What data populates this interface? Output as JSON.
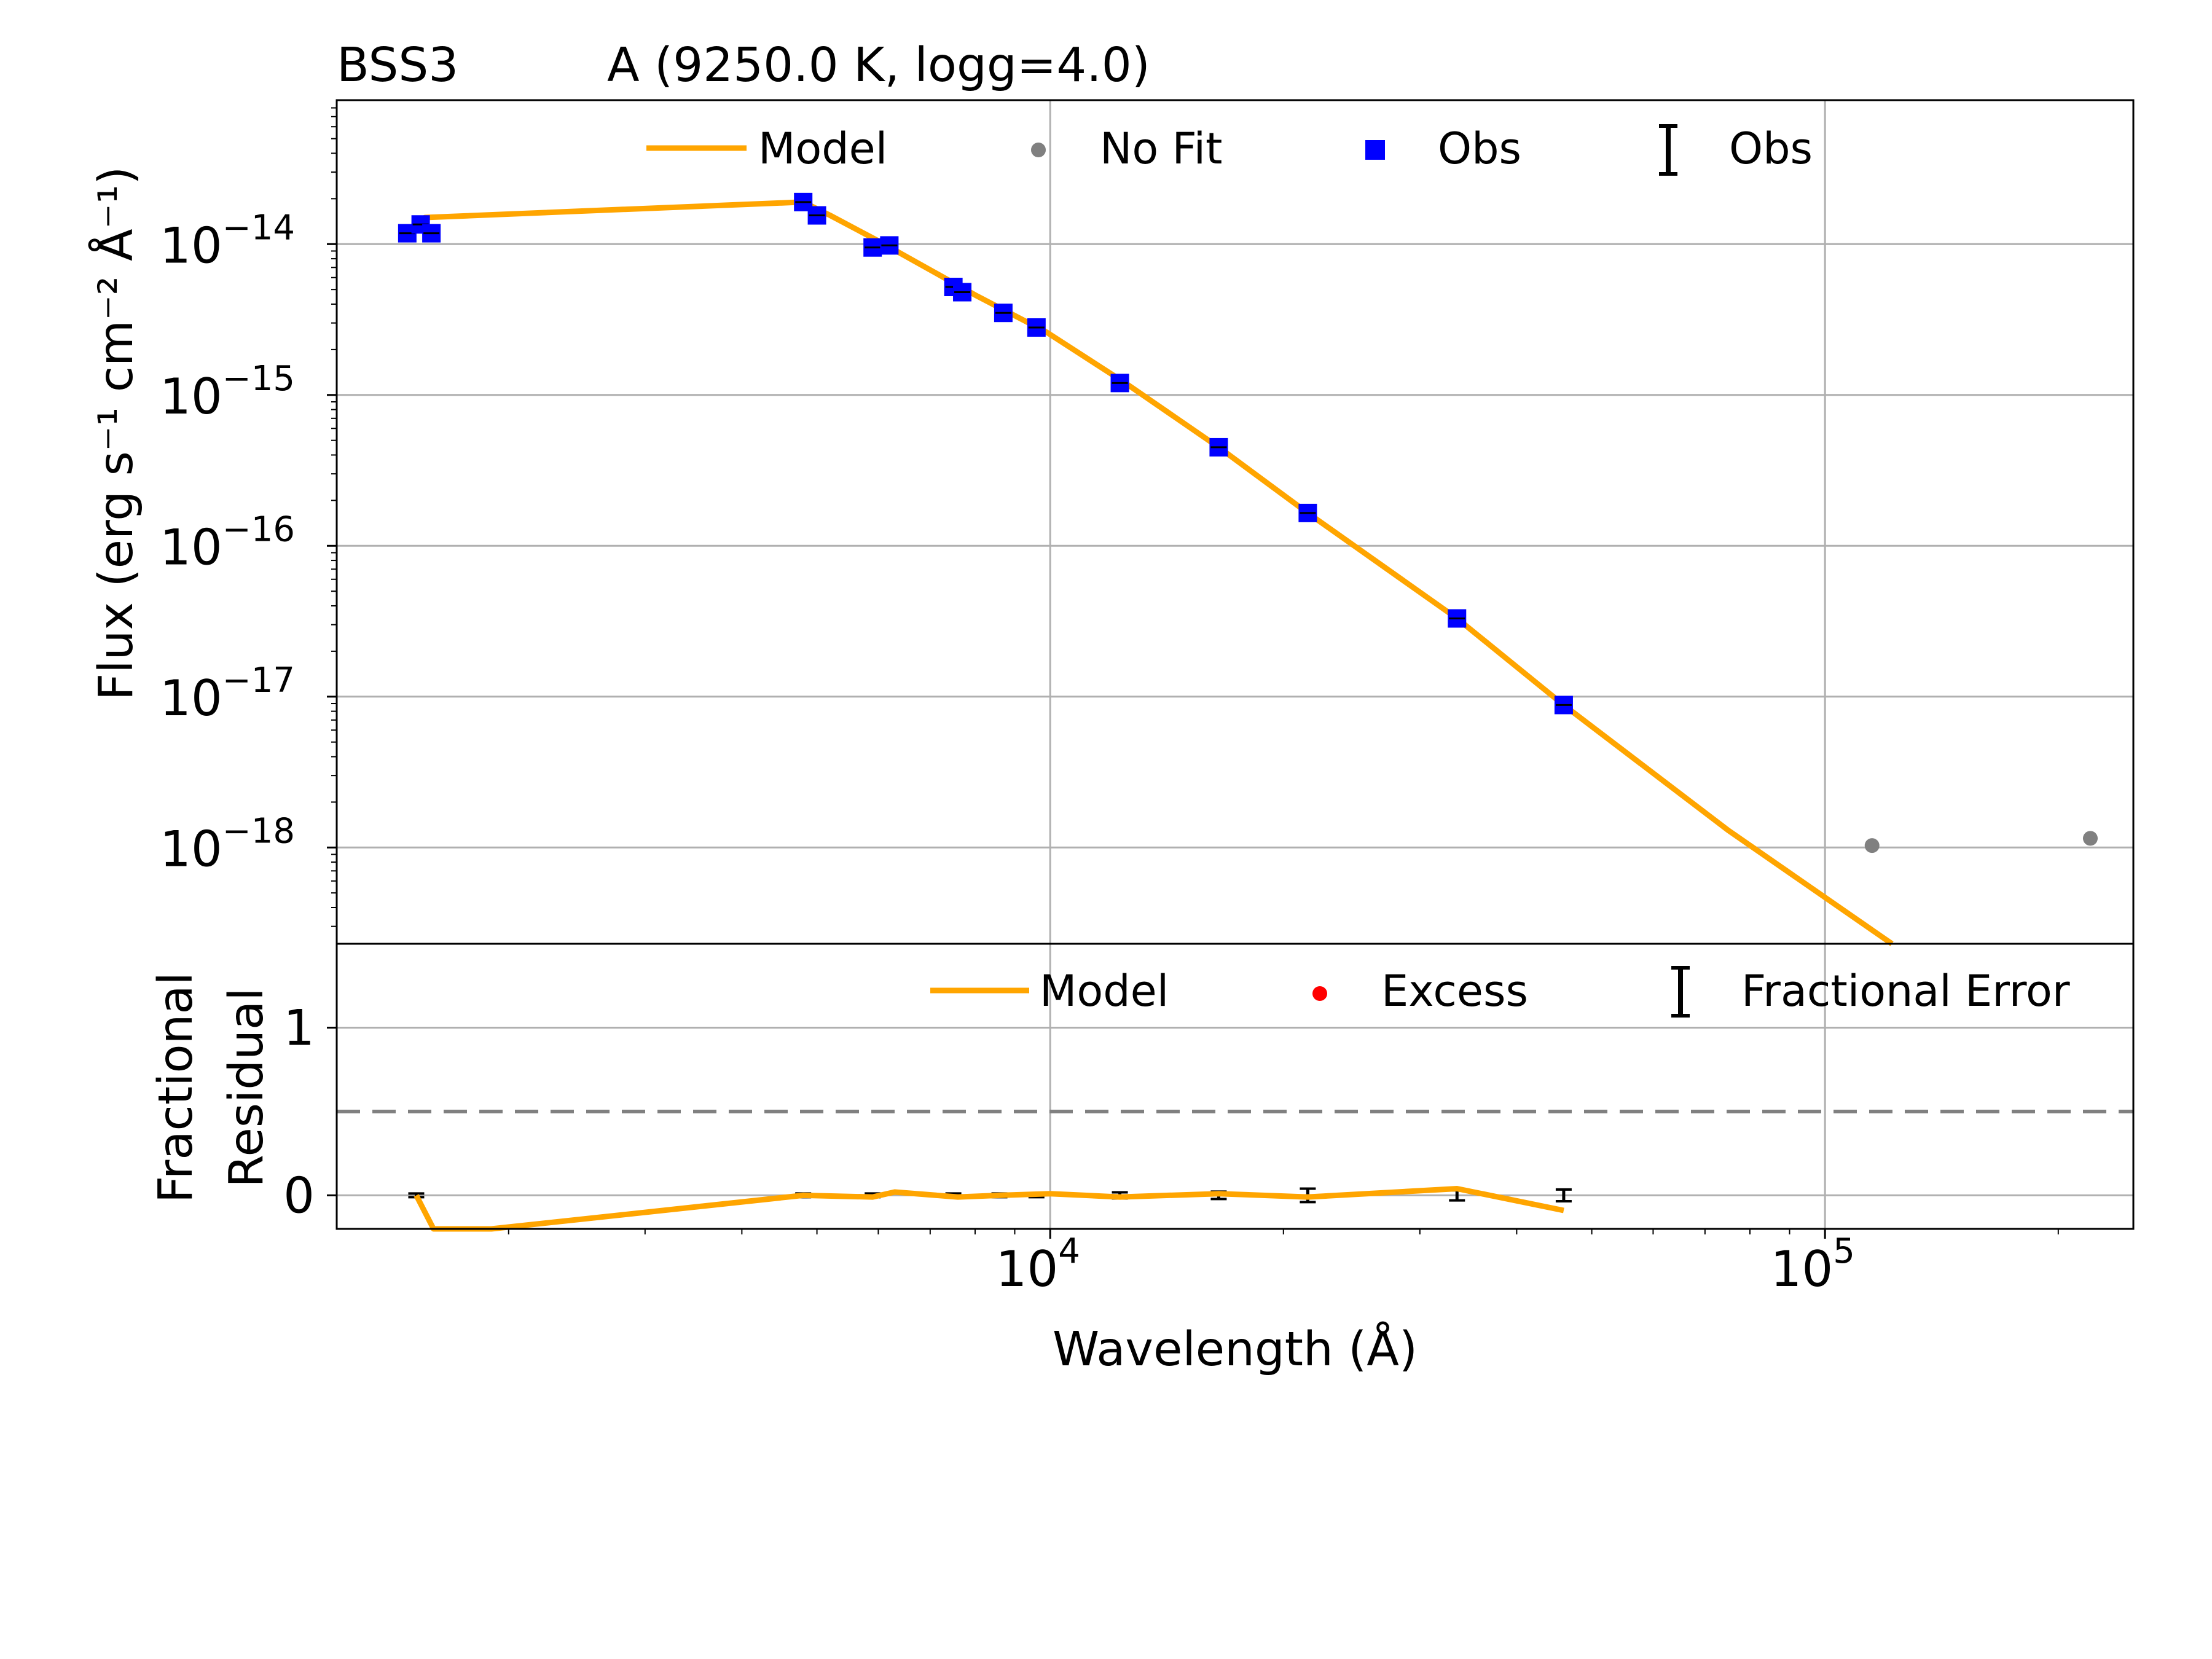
{
  "figure": {
    "star_name": "BSS3",
    "model_label": "A (9250.0 K, logg=4.0)"
  },
  "colors": {
    "model": "#FFA500",
    "obs": "#0000FF",
    "nofit": "#808080",
    "excess": "#FF0000",
    "grid": "#B0B0B0",
    "dashed": "#808080",
    "errorbar": "#000000"
  },
  "chart_data": [
    {
      "type": "line",
      "panel": "sed",
      "xscale": "log",
      "yscale": "log",
      "xlim": [
        1200,
        250000
      ],
      "ylim": [
        2.3e-19,
        9e-14
      ],
      "xlabel": "Wavelength (Å)",
      "ylabel": "Flux (erg s⁻¹ cm⁻² Å⁻¹)",
      "y_ticks": [
        {
          "value": 1e-14,
          "mant": "10",
          "exp": "−14"
        },
        {
          "value": 1e-15,
          "mant": "10",
          "exp": "−15"
        },
        {
          "value": 1e-16,
          "mant": "10",
          "exp": "−16"
        },
        {
          "value": 1e-17,
          "mant": "10",
          "exp": "−17"
        },
        {
          "value": 1e-18,
          "mant": "10",
          "exp": "−18"
        }
      ],
      "x_grid": [
        10000,
        100000
      ],
      "legend": {
        "location": "top",
        "entries": [
          {
            "label": "Model",
            "kind": "line"
          },
          {
            "label": "No Fit",
            "kind": "gray-dot"
          },
          {
            "label": "Obs",
            "kind": "blue-square"
          },
          {
            "label": "Obs",
            "kind": "errorbar"
          }
        ]
      },
      "series": [
        {
          "name": "Model",
          "kind": "line",
          "points": [
            [
              1480,
              1.15e-14
            ],
            [
              1560,
              1.5e-14
            ],
            [
              4800,
              1.9e-14
            ],
            [
              5200,
              1.55e-14
            ],
            [
              6000,
              1.05e-14
            ],
            [
              8000,
              4.6e-15
            ],
            [
              9900,
              2.6e-15
            ],
            [
              12500,
              1.2e-15
            ],
            [
              16500,
              4.5e-16
            ],
            [
              21500,
              1.65e-16
            ],
            [
              33500,
              3.3e-17
            ],
            [
              46000,
              8.8e-18
            ],
            [
              75000,
              1.3e-18
            ],
            [
              122000,
              2.3e-19
            ]
          ]
        },
        {
          "name": "Obs",
          "kind": "square",
          "points": [
            [
              1480,
              1.18e-14
            ],
            [
              1540,
              1.35e-14
            ],
            [
              1590,
              1.18e-14
            ],
            [
              4800,
              1.9e-14
            ],
            [
              5000,
              1.55e-14
            ],
            [
              5900,
              9.5e-15
            ],
            [
              6200,
              9.8e-15
            ],
            [
              7500,
              5.2e-15
            ],
            [
              7700,
              4.8e-15
            ],
            [
              8700,
              3.5e-15
            ],
            [
              9600,
              2.8e-15
            ],
            [
              12300,
              1.2e-15
            ],
            [
              16500,
              4.5e-16
            ],
            [
              21500,
              1.65e-16
            ],
            [
              33500,
              3.3e-17
            ],
            [
              46000,
              8.8e-18
            ]
          ]
        },
        {
          "name": "No Fit",
          "kind": "dot",
          "points": [
            [
              115000,
              1.03e-18
            ],
            [
              220000,
              1.15e-18
            ]
          ]
        }
      ]
    },
    {
      "type": "line",
      "panel": "residual",
      "xscale": "log",
      "xlim": [
        1200,
        250000
      ],
      "ylim": [
        -0.2,
        1.5
      ],
      "xlabel": "Wavelength (Å)",
      "ylabel_line1": "Fractional",
      "ylabel_line2": "Residual",
      "y_ticks": [
        {
          "value": 0,
          "label": "0"
        },
        {
          "value": 1,
          "label": "1"
        }
      ],
      "x_ticks": [
        {
          "value": 10000,
          "mant": "10",
          "exp": "4"
        },
        {
          "value": 100000,
          "mant": "10",
          "exp": "5"
        }
      ],
      "x_grid": [
        10000,
        100000
      ],
      "threshold": 0.5,
      "legend": {
        "location": "top-right",
        "entries": [
          {
            "label": "Model",
            "kind": "line"
          },
          {
            "label": "Excess",
            "kind": "red-dot"
          },
          {
            "label": "Fractional Error",
            "kind": "errorbar"
          }
        ]
      },
      "series": [
        {
          "name": "Model",
          "kind": "line",
          "points": [
            [
              1520,
              0.0
            ],
            [
              1600,
              -0.2
            ],
            [
              1900,
              -0.2
            ],
            [
              4800,
              0.0
            ],
            [
              5900,
              -0.01
            ],
            [
              6300,
              0.02
            ],
            [
              7600,
              -0.01
            ],
            [
              8600,
              0.0
            ],
            [
              10000,
              0.01
            ],
            [
              12300,
              -0.01
            ],
            [
              16500,
              0.01
            ],
            [
              21500,
              -0.01
            ],
            [
              33500,
              0.04
            ],
            [
              46000,
              -0.09
            ]
          ]
        },
        {
          "name": "Fractional Error",
          "kind": "errorbar",
          "points": [
            [
              1520,
              0,
              0.004
            ],
            [
              4800,
              0,
              0.004
            ],
            [
              5900,
              0,
              0.004
            ],
            [
              7500,
              0,
              0.004
            ],
            [
              8600,
              0,
              0.004
            ],
            [
              9600,
              0,
              0.004
            ],
            [
              12300,
              0,
              0.018
            ],
            [
              16500,
              0,
              0.022
            ],
            [
              21500,
              0,
              0.04
            ],
            [
              33500,
              0,
              0.03
            ],
            [
              46000,
              0,
              0.035
            ]
          ]
        }
      ]
    }
  ]
}
